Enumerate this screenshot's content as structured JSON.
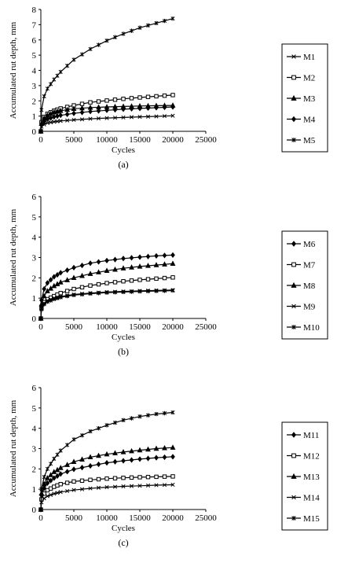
{
  "chart_data": [
    {
      "type": "line",
      "caption": "(a)",
      "xlabel": "Cycles",
      "ylabel": "Accumulated rut depth, mm",
      "xlim": [
        0,
        25000
      ],
      "ylim": [
        0,
        8
      ],
      "xticks": [
        0,
        5000,
        10000,
        15000,
        20000,
        25000
      ],
      "yticks": [
        0,
        1,
        2,
        3,
        4,
        5,
        6,
        7,
        8
      ],
      "legend_position": "right",
      "series": [
        {
          "name": "M1",
          "marker": "x",
          "x": [
            0,
            100,
            500,
            1000,
            2000,
            3000,
            5000,
            7500,
            10000,
            12500,
            15000,
            17500,
            20000
          ],
          "values": [
            0,
            0.3,
            0.45,
            0.55,
            0.63,
            0.68,
            0.75,
            0.82,
            0.87,
            0.91,
            0.95,
            0.98,
            1.02
          ]
        },
        {
          "name": "M2",
          "marker": "square",
          "x": [
            0,
            100,
            500,
            1000,
            2000,
            3000,
            5000,
            7500,
            10000,
            12500,
            15000,
            17500,
            20000
          ],
          "values": [
            0,
            0.6,
            0.95,
            1.15,
            1.35,
            1.5,
            1.7,
            1.9,
            2.02,
            2.13,
            2.22,
            2.3,
            2.38
          ]
        },
        {
          "name": "M3",
          "marker": "triangle",
          "x": [
            0,
            100,
            500,
            1000,
            2000,
            3000,
            5000,
            7500,
            10000,
            12500,
            15000,
            17500,
            20000
          ],
          "values": [
            0,
            0.5,
            0.85,
            1.05,
            1.25,
            1.35,
            1.48,
            1.56,
            1.6,
            1.63,
            1.66,
            1.68,
            1.7
          ]
        },
        {
          "name": "M4",
          "marker": "diamond",
          "x": [
            0,
            100,
            500,
            1000,
            2000,
            3000,
            5000,
            7500,
            10000,
            12500,
            15000,
            17500,
            20000
          ],
          "values": [
            0,
            0.4,
            0.65,
            0.8,
            0.95,
            1.05,
            1.18,
            1.3,
            1.38,
            1.45,
            1.5,
            1.55,
            1.6
          ]
        },
        {
          "name": "M5",
          "marker": "star",
          "x": [
            0,
            100,
            500,
            1000,
            2000,
            3000,
            5000,
            7500,
            10000,
            12500,
            15000,
            17500,
            20000
          ],
          "values": [
            0,
            1.4,
            2.3,
            2.8,
            3.4,
            3.9,
            4.7,
            5.4,
            5.95,
            6.4,
            6.8,
            7.1,
            7.4
          ]
        }
      ]
    },
    {
      "type": "line",
      "caption": "(b)",
      "xlabel": "Cycles",
      "ylabel": "Accumulated rut depth, mm",
      "xlim": [
        0,
        25000
      ],
      "ylim": [
        0,
        6
      ],
      "xticks": [
        0,
        5000,
        10000,
        15000,
        20000,
        25000
      ],
      "yticks": [
        0,
        1,
        2,
        3,
        4,
        5,
        6
      ],
      "legend_position": "right",
      "series": [
        {
          "name": "M6",
          "marker": "diamond",
          "x": [
            0,
            100,
            500,
            1000,
            2000,
            3000,
            5000,
            7500,
            10000,
            12500,
            15000,
            17500,
            20000
          ],
          "values": [
            0,
            0.9,
            1.45,
            1.75,
            2.05,
            2.25,
            2.5,
            2.72,
            2.85,
            2.95,
            3.02,
            3.08,
            3.12
          ]
        },
        {
          "name": "M7",
          "marker": "square",
          "x": [
            0,
            100,
            500,
            1000,
            2000,
            3000,
            5000,
            7500,
            10000,
            12500,
            15000,
            17500,
            20000
          ],
          "values": [
            0,
            0.5,
            0.8,
            0.95,
            1.1,
            1.25,
            1.45,
            1.62,
            1.74,
            1.83,
            1.9,
            1.96,
            2.02
          ]
        },
        {
          "name": "M8",
          "marker": "triangle",
          "x": [
            0,
            100,
            500,
            1000,
            2000,
            3000,
            5000,
            7500,
            10000,
            12500,
            15000,
            17500,
            20000
          ],
          "values": [
            0,
            0.7,
            1.1,
            1.35,
            1.6,
            1.78,
            2.0,
            2.2,
            2.35,
            2.47,
            2.56,
            2.63,
            2.7
          ]
        },
        {
          "name": "M9",
          "marker": "x",
          "x": [
            0,
            100,
            500,
            1000,
            2000,
            3000,
            5000,
            7500,
            10000,
            12500,
            15000,
            17500,
            20000
          ],
          "values": [
            0,
            0.5,
            0.75,
            0.88,
            1.0,
            1.08,
            1.18,
            1.25,
            1.3,
            1.33,
            1.36,
            1.38,
            1.4
          ]
        },
        {
          "name": "M10",
          "marker": "star",
          "x": [
            0,
            100,
            500,
            1000,
            2000,
            3000,
            5000,
            7500,
            10000,
            12500,
            15000,
            17500,
            20000
          ],
          "values": [
            0,
            0.45,
            0.7,
            0.82,
            0.95,
            1.04,
            1.15,
            1.22,
            1.27,
            1.3,
            1.33,
            1.35,
            1.37
          ]
        }
      ]
    },
    {
      "type": "line",
      "caption": "(c)",
      "xlabel": "Cycles",
      "ylabel": "Accumulated rut depth, mm",
      "xlim": [
        0,
        25000
      ],
      "ylim": [
        0,
        6
      ],
      "xticks": [
        0,
        5000,
        10000,
        15000,
        20000,
        25000
      ],
      "yticks": [
        0,
        1,
        2,
        3,
        4,
        5,
        6
      ],
      "legend_position": "right",
      "series": [
        {
          "name": "M11",
          "marker": "diamond",
          "x": [
            0,
            100,
            500,
            1000,
            2000,
            3000,
            5000,
            7500,
            10000,
            12500,
            15000,
            17500,
            20000
          ],
          "values": [
            0,
            0.7,
            1.05,
            1.3,
            1.55,
            1.75,
            1.98,
            2.15,
            2.3,
            2.4,
            2.48,
            2.55,
            2.6
          ]
        },
        {
          "name": "M12",
          "marker": "square",
          "x": [
            0,
            100,
            500,
            1000,
            2000,
            3000,
            5000,
            7500,
            10000,
            12500,
            15000,
            17500,
            20000
          ],
          "values": [
            0,
            0.5,
            0.78,
            0.95,
            1.12,
            1.25,
            1.38,
            1.46,
            1.52,
            1.56,
            1.59,
            1.61,
            1.63
          ]
        },
        {
          "name": "M13",
          "marker": "triangle",
          "x": [
            0,
            100,
            500,
            1000,
            2000,
            3000,
            5000,
            7500,
            10000,
            12500,
            15000,
            17500,
            20000
          ],
          "values": [
            0,
            0.8,
            1.25,
            1.55,
            1.85,
            2.05,
            2.35,
            2.58,
            2.72,
            2.83,
            2.92,
            3.0,
            3.05
          ]
        },
        {
          "name": "M14",
          "marker": "x",
          "x": [
            0,
            100,
            500,
            1000,
            2000,
            3000,
            5000,
            7500,
            10000,
            12500,
            15000,
            17500,
            20000
          ],
          "values": [
            0,
            0.35,
            0.55,
            0.66,
            0.78,
            0.86,
            0.96,
            1.04,
            1.1,
            1.14,
            1.17,
            1.2,
            1.22
          ]
        },
        {
          "name": "M15",
          "marker": "star",
          "x": [
            0,
            100,
            500,
            1000,
            2000,
            3000,
            5000,
            7500,
            10000,
            12500,
            15000,
            17500,
            20000
          ],
          "values": [
            0,
            1.0,
            1.6,
            2.0,
            2.5,
            2.9,
            3.45,
            3.85,
            4.15,
            4.4,
            4.58,
            4.7,
            4.78
          ]
        }
      ]
    }
  ]
}
